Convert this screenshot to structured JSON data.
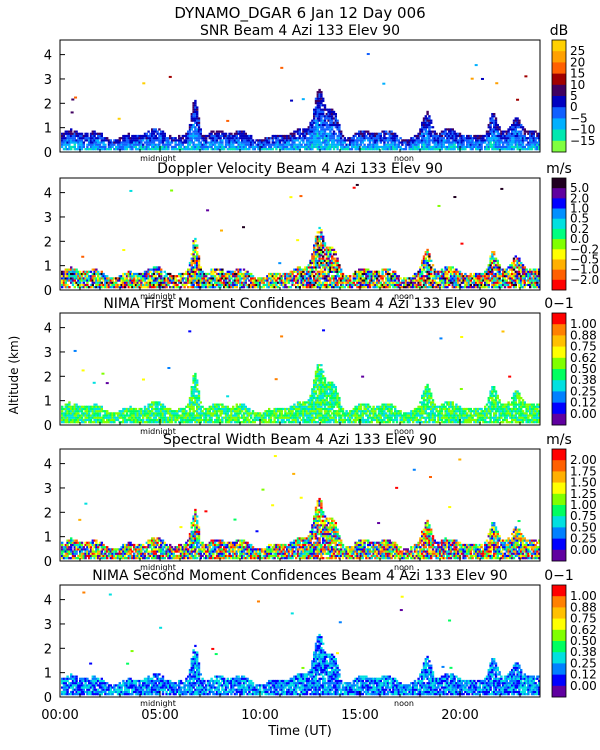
{
  "chart_data": {
    "type": "heatmap",
    "figure_title": "DYNAMO_DGAR    6 Jan 12 Day 006",
    "ylabel": "Altitude (km)",
    "xlabel": "Time (UT)",
    "x_ticks": [
      "00:00",
      "05:00",
      "10:00",
      "15:00",
      "20:00"
    ],
    "x_tick_hours": [
      0,
      5,
      10,
      15,
      20
    ],
    "xlim_hours": [
      0,
      24
    ],
    "marker_labels": [
      "midnight",
      "noon"
    ],
    "marker_hours": [
      4.9,
      17.2
    ],
    "y_ticks": [
      "0",
      "1",
      "2",
      "3",
      "4"
    ],
    "ylim_km": [
      0,
      4.6
    ],
    "panels": [
      {
        "title": "SNR Beam 4 Azi 133 Elev 90",
        "unit": "dB",
        "colorbar_labels": [
          "25",
          "20",
          "15",
          "10",
          "5",
          "0",
          "−5",
          "−10",
          "−15"
        ],
        "colors": [
          "#ffd000",
          "#ffa000",
          "#ff6000",
          "#a00000",
          "#400060",
          "#0000c0",
          "#1060ff",
          "#00b0ff",
          "#00e8b0",
          "#80ff40"
        ]
      },
      {
        "title": "Doppler Velocity Beam 4 Azi 133 Elev 90",
        "unit": "m/s",
        "colorbar_labels": [
          "5.0",
          "2.0",
          "1.0",
          "0.5",
          "0.2",
          "0.0",
          "−0.2",
          "−0.5",
          "−1.0",
          "−2.0"
        ],
        "colors": [
          "#200020",
          "#6000a0",
          "#0000ff",
          "#0090ff",
          "#00e0e0",
          "#00ff80",
          "#80ff00",
          "#ffff00",
          "#ffb000",
          "#ff6000",
          "#ff0000"
        ]
      },
      {
        "title": "NIMA First Moment Confidences Beam 4 Azi 133 Elev 90",
        "unit": "0−1",
        "colorbar_labels": [
          "1.00",
          "0.88",
          "0.75",
          "0.62",
          "0.50",
          "0.38",
          "0.25",
          "0.12",
          "0.00"
        ],
        "colors": [
          "#ff0000",
          "#ff8000",
          "#ffc000",
          "#ffff00",
          "#80ff00",
          "#00ff60",
          "#00e0e0",
          "#0080ff",
          "#0000ff",
          "#6000a0"
        ]
      },
      {
        "title": "Spectral Width Beam 4 Azi 133 Elev 90",
        "unit": "m/s",
        "colorbar_labels": [
          "2.00",
          "1.75",
          "1.50",
          "1.25",
          "1.00",
          "0.75",
          "0.50",
          "0.25",
          "0.00"
        ],
        "colors": [
          "#ff0000",
          "#ff6000",
          "#ffb000",
          "#ffff00",
          "#80ff00",
          "#00ff60",
          "#00e0e0",
          "#0080ff",
          "#0000ff",
          "#6000a0"
        ]
      },
      {
        "title": "NIMA Second Moment Confidences Beam 4 Azi 133 Elev 90",
        "unit": "0−1",
        "colorbar_labels": [
          "1.00",
          "0.88",
          "0.75",
          "0.62",
          "0.50",
          "0.38",
          "0.25",
          "0.12",
          "0.00"
        ],
        "colors": [
          "#ff0000",
          "#ff8000",
          "#ffc000",
          "#ffff00",
          "#80ff00",
          "#00ff60",
          "#00e0e0",
          "#0080ff",
          "#0000ff",
          "#6000a0"
        ]
      }
    ]
  }
}
